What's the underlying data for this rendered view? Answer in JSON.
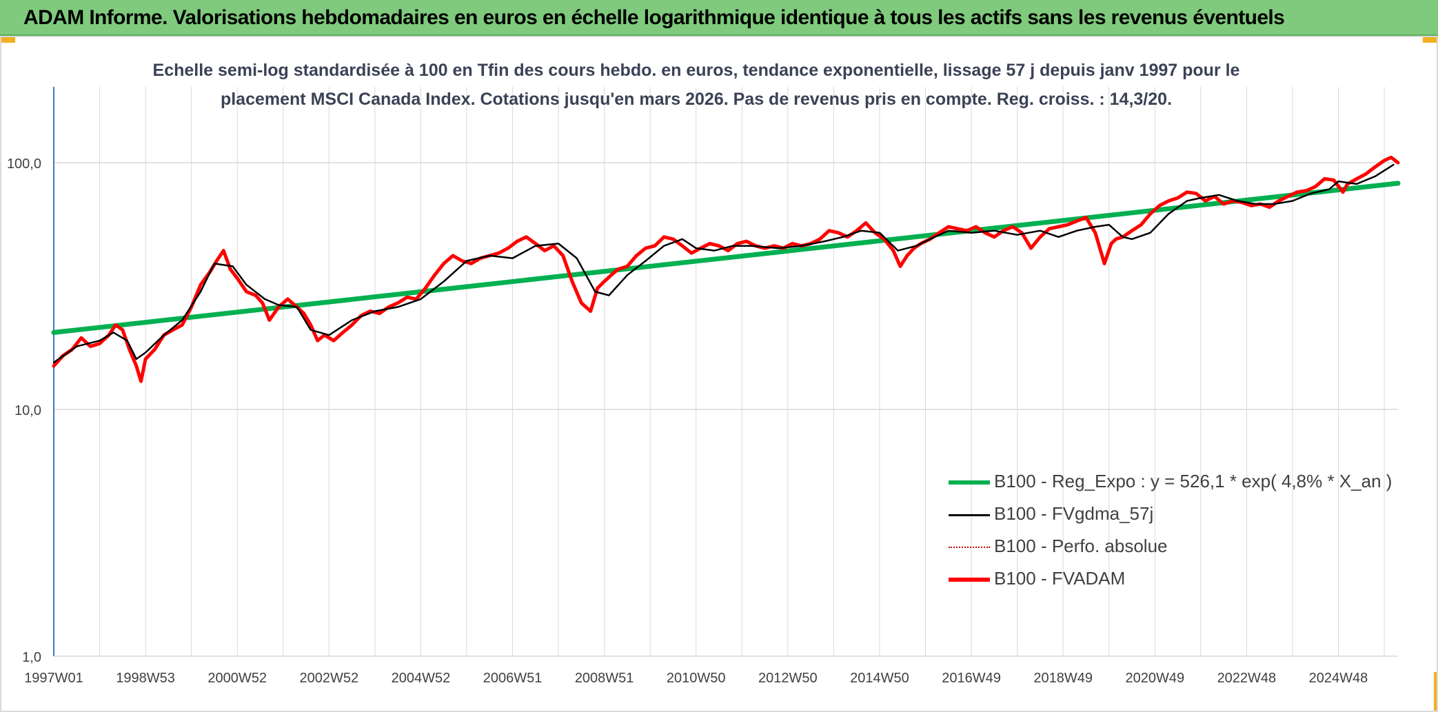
{
  "header": {
    "title": "ADAM Informe. Valorisations hebdomadaires en euros en échelle logarithmique identique à tous les actifs sans les revenus éventuels"
  },
  "colors": {
    "banner": "#7fca7c",
    "corner_accent": "#f2b01e",
    "regression": "#00b050",
    "smoothed": "#000000",
    "perf_absolue": "#c00000",
    "fvadam": "#ff0000",
    "grid": "#d9d9d9",
    "axis": "#4472c4"
  },
  "chart_data": {
    "type": "line",
    "subtitle_line1": "Echelle semi-log standardisée à 100 en Tfin des cours hebdo. en euros, tendance exponentielle, lissage 57 j depuis janv 1997 pour le",
    "subtitle_line2": "placement MSCI Canada Index. Cotations jusqu'en mars 2026. Pas de revenus pris en compte. Reg. croiss. : 14,3/20.",
    "y_scale": "log",
    "ylim": [
      1,
      200
    ],
    "y_ticks": [
      1,
      10,
      100
    ],
    "y_tick_labels": [
      "1,0",
      "10,0",
      "100,0"
    ],
    "xlim": [
      1997.0,
      2026.3
    ],
    "x_ticks": [
      1997.0,
      1999.0,
      2001.0,
      2003.0,
      2005.0,
      2007.0,
      2009.0,
      2011.0,
      2013.0,
      2015.0,
      2017.0,
      2019.0,
      2021.0,
      2023.0,
      2025.0
    ],
    "x_tick_labels": [
      "1997W01",
      "1998W53",
      "2000W52",
      "2002W52",
      "2004W52",
      "2006W51",
      "2008W51",
      "2010W50",
      "2012W50",
      "2014W50",
      "2016W49",
      "2018W49",
      "2020W49",
      "2022W48",
      "2024W48"
    ],
    "x_grid_step_years": 1,
    "grid": true,
    "legend_position": "bottom-right",
    "series": [
      {
        "name": "B100 - Reg_Expo : y = 526,1 * exp( 4,8% *  X_an )",
        "key": "reg",
        "style": "thick-solid",
        "x": [
          1997.0,
          2026.3
        ],
        "y": [
          20.5,
          82.5
        ]
      },
      {
        "name": "B100 - FVgdma_57j",
        "key": "smooth",
        "style": "thin-solid",
        "x": [
          1997.0,
          1997.5,
          1998.0,
          1998.3,
          1998.6,
          1998.8,
          1999.0,
          1999.4,
          1999.8,
          2000.2,
          2000.5,
          2000.9,
          2001.2,
          2001.6,
          2001.9,
          2002.3,
          2002.6,
          2003.0,
          2003.5,
          2004.0,
          2004.5,
          2005.0,
          2005.5,
          2006.0,
          2006.5,
          2007.0,
          2007.5,
          2008.0,
          2008.4,
          2008.8,
          2009.1,
          2009.5,
          2009.9,
          2010.3,
          2010.7,
          2011.0,
          2011.4,
          2011.8,
          2012.2,
          2012.8,
          2013.3,
          2013.8,
          2014.2,
          2014.6,
          2015.0,
          2015.4,
          2015.8,
          2016.1,
          2016.5,
          2017.0,
          2017.5,
          2018.0,
          2018.5,
          2018.9,
          2019.3,
          2019.7,
          2020.0,
          2020.3,
          2020.5,
          2020.9,
          2021.3,
          2021.7,
          2022.0,
          2022.4,
          2022.8,
          2023.2,
          2023.6,
          2024.0,
          2024.4,
          2024.8,
          2025.0,
          2025.4,
          2025.8,
          2026.2
        ],
        "y": [
          15.5,
          18.0,
          19.0,
          20.5,
          19.0,
          16.0,
          17.0,
          20.0,
          23.0,
          30.0,
          39.0,
          38.0,
          32.0,
          28.0,
          26.5,
          26.0,
          21.0,
          20.0,
          23.0,
          25.0,
          26.0,
          28.0,
          33.0,
          40.0,
          42.0,
          41.0,
          46.0,
          47.0,
          41.0,
          30.0,
          29.0,
          35.0,
          40.0,
          46.0,
          49.0,
          45.0,
          44.0,
          46.0,
          46.0,
          45.0,
          46.0,
          48.0,
          50.0,
          53.0,
          52.0,
          44.0,
          46.0,
          49.0,
          53.0,
          52.0,
          53.0,
          51.0,
          53.0,
          50.0,
          53.0,
          55.0,
          56.0,
          50.0,
          49.0,
          52.0,
          62.0,
          70.0,
          72.0,
          74.0,
          70.0,
          68.0,
          68.0,
          70.0,
          75.0,
          78.0,
          84.0,
          82.0,
          88.0,
          98.0
        ]
      },
      {
        "name": "B100 - Perfo. absolue",
        "key": "perf",
        "style": "dotted",
        "x": [],
        "y": []
      },
      {
        "name": "B100 - FVADAM",
        "key": "fvadam",
        "style": "thick-solid",
        "x": [
          1997.0,
          1997.2,
          1997.4,
          1997.6,
          1997.8,
          1998.0,
          1998.2,
          1998.35,
          1998.5,
          1998.65,
          1998.8,
          1998.9,
          1999.0,
          1999.2,
          1999.4,
          1999.6,
          1999.8,
          2000.0,
          2000.2,
          2000.4,
          2000.55,
          2000.7,
          2000.85,
          2001.0,
          2001.2,
          2001.4,
          2001.55,
          2001.7,
          2001.9,
          2002.1,
          2002.3,
          2002.45,
          2002.6,
          2002.75,
          2002.9,
          2003.1,
          2003.3,
          2003.5,
          2003.7,
          2003.9,
          2004.1,
          2004.3,
          2004.5,
          2004.7,
          2004.9,
          2005.1,
          2005.3,
          2005.5,
          2005.7,
          2005.9,
          2006.1,
          2006.3,
          2006.5,
          2006.7,
          2006.9,
          2007.1,
          2007.3,
          2007.5,
          2007.7,
          2007.9,
          2008.1,
          2008.3,
          2008.5,
          2008.7,
          2008.85,
          2009.0,
          2009.15,
          2009.3,
          2009.5,
          2009.7,
          2009.9,
          2010.1,
          2010.3,
          2010.5,
          2010.7,
          2010.9,
          2011.1,
          2011.3,
          2011.5,
          2011.7,
          2011.9,
          2012.1,
          2012.3,
          2012.5,
          2012.7,
          2012.9,
          2013.1,
          2013.3,
          2013.5,
          2013.7,
          2013.9,
          2014.1,
          2014.3,
          2014.5,
          2014.7,
          2014.9,
          2015.1,
          2015.3,
          2015.45,
          2015.6,
          2015.75,
          2015.9,
          2016.1,
          2016.3,
          2016.5,
          2016.7,
          2016.9,
          2017.1,
          2017.3,
          2017.5,
          2017.7,
          2017.9,
          2018.1,
          2018.3,
          2018.5,
          2018.7,
          2018.9,
          2019.1,
          2019.3,
          2019.5,
          2019.7,
          2019.9,
          2020.05,
          2020.15,
          2020.3,
          2020.5,
          2020.7,
          2020.9,
          2021.1,
          2021.3,
          2021.5,
          2021.7,
          2021.9,
          2022.1,
          2022.3,
          2022.5,
          2022.7,
          2022.9,
          2023.1,
          2023.3,
          2023.5,
          2023.7,
          2023.9,
          2024.1,
          2024.3,
          2024.5,
          2024.7,
          2024.9,
          2025.1,
          2025.2,
          2025.4,
          2025.6,
          2025.8,
          2026.0,
          2026.15,
          2026.3
        ],
        "y": [
          15.0,
          16.5,
          17.5,
          19.5,
          18.0,
          18.5,
          20.0,
          22.0,
          21.0,
          17.5,
          15.0,
          13.0,
          16.0,
          17.5,
          20.0,
          21.0,
          22.0,
          26.0,
          32.0,
          36.0,
          40.0,
          44.0,
          37.0,
          34.0,
          30.0,
          29.0,
          27.0,
          23.0,
          26.0,
          28.0,
          26.0,
          24.5,
          22.0,
          19.0,
          20.0,
          19.0,
          20.5,
          22.0,
          24.0,
          25.0,
          24.5,
          26.0,
          27.0,
          28.5,
          28.0,
          31.0,
          35.0,
          39.0,
          42.0,
          40.0,
          39.0,
          41.0,
          42.0,
          43.0,
          45.0,
          48.0,
          50.0,
          47.0,
          44.0,
          46.0,
          42.0,
          33.0,
          27.0,
          25.0,
          31.0,
          33.0,
          35.0,
          37.0,
          38.0,
          42.0,
          45.0,
          46.0,
          50.0,
          49.0,
          46.0,
          43.0,
          45.0,
          47.0,
          46.0,
          44.0,
          47.0,
          48.0,
          46.0,
          45.0,
          46.0,
          45.0,
          47.0,
          46.0,
          47.0,
          49.0,
          53.0,
          52.0,
          50.0,
          53.0,
          57.0,
          52.0,
          49.0,
          44.0,
          38.0,
          42.0,
          45.0,
          47.0,
          49.0,
          52.0,
          55.0,
          54.0,
          53.0,
          55.0,
          52.0,
          50.0,
          53.0,
          55.0,
          52.0,
          45.0,
          50.0,
          54.0,
          55.0,
          56.0,
          58.0,
          60.0,
          52.0,
          39.0,
          47.0,
          49.0,
          50.0,
          53.0,
          56.0,
          62.0,
          67.0,
          70.0,
          72.0,
          76.0,
          75.0,
          70.0,
          73.0,
          68.0,
          70.0,
          69.0,
          67.0,
          68.0,
          66.0,
          70.0,
          73.0,
          76.0,
          77.0,
          80.0,
          86.0,
          85.0,
          76.0,
          82.0,
          86.0,
          90.0,
          96.0,
          102.0,
          105.0,
          100.0
        ]
      }
    ]
  }
}
